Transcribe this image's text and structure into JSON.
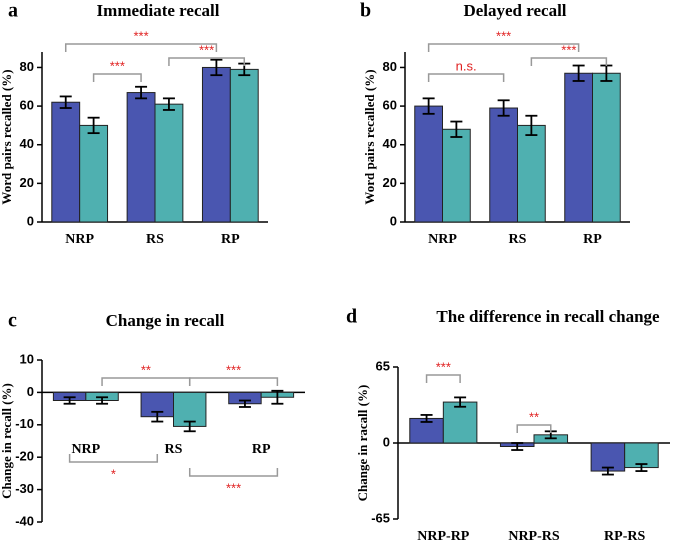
{
  "chart_data": [
    {
      "type": "bar",
      "panel": "a",
      "title": "Immediate recall",
      "y_label": "Word pairs recalled (%)",
      "categories": [
        "NRP",
        "RS",
        "RP"
      ],
      "series": [
        {
          "color": "#4a56b0",
          "values": [
            62,
            67,
            80
          ],
          "errors": [
            3,
            3,
            4
          ]
        },
        {
          "color": "#4fb0b0",
          "values": [
            50,
            61,
            79
          ],
          "errors": [
            4,
            3,
            3
          ]
        }
      ],
      "ylim": [
        0,
        88
      ],
      "yticks": [
        0,
        20,
        40,
        60,
        80
      ],
      "annotations": [
        {
          "text": "***"
        },
        {
          "text": "***"
        },
        {
          "text": "***"
        }
      ]
    },
    {
      "type": "bar",
      "panel": "b",
      "title": "Delayed recall",
      "y_label": "Word pairs recalled (%)",
      "categories": [
        "NRP",
        "RS",
        "RP"
      ],
      "series": [
        {
          "color": "#4a56b0",
          "values": [
            60,
            59,
            77
          ],
          "errors": [
            4,
            4,
            4
          ]
        },
        {
          "color": "#4fb0b0",
          "values": [
            48,
            50,
            77
          ],
          "errors": [
            4,
            5,
            4
          ]
        }
      ],
      "ylim": [
        0,
        88
      ],
      "yticks": [
        0,
        20,
        40,
        60,
        80
      ],
      "annotations": [
        {
          "text": "n.s."
        },
        {
          "text": "***"
        },
        {
          "text": "***"
        }
      ]
    },
    {
      "type": "bar",
      "panel": "c",
      "title": "Change in recall",
      "y_label": "Change in recall (%)",
      "categories": [
        "NRP",
        "RS",
        "RP"
      ],
      "series": [
        {
          "color": "#4a56b0",
          "values": [
            -2.5,
            -7.5,
            -3.5
          ],
          "errors": [
            1,
            1.5,
            1
          ]
        },
        {
          "color": "#4fb0b0",
          "values": [
            -2.5,
            -10.5,
            -1.5
          ],
          "errors": [
            1,
            1.5,
            2
          ]
        }
      ],
      "ylim": [
        -40,
        10
      ],
      "yticks": [
        10,
        0,
        -10,
        -20,
        -30,
        -40
      ],
      "annotations": [
        {
          "text": "**"
        },
        {
          "text": "***"
        },
        {
          "text": "*"
        },
        {
          "text": "***"
        }
      ]
    },
    {
      "type": "bar",
      "panel": "d",
      "title": "The difference in recall change",
      "y_label": "Change in racall (%)",
      "categories": [
        "NRP-RP",
        "NRP-RS",
        "RP-RS"
      ],
      "series": [
        {
          "color": "#4a56b0",
          "values": [
            21,
            -3,
            -24
          ],
          "errors": [
            3,
            3,
            3
          ]
        },
        {
          "color": "#4fb0b0",
          "values": [
            35,
            7,
            -21
          ],
          "errors": [
            4,
            3,
            3
          ]
        }
      ],
      "ylim": [
        -65,
        65
      ],
      "yticks": [
        65,
        0,
        -65
      ],
      "annotations": [
        {
          "text": "***"
        },
        {
          "text": "**"
        }
      ]
    }
  ]
}
